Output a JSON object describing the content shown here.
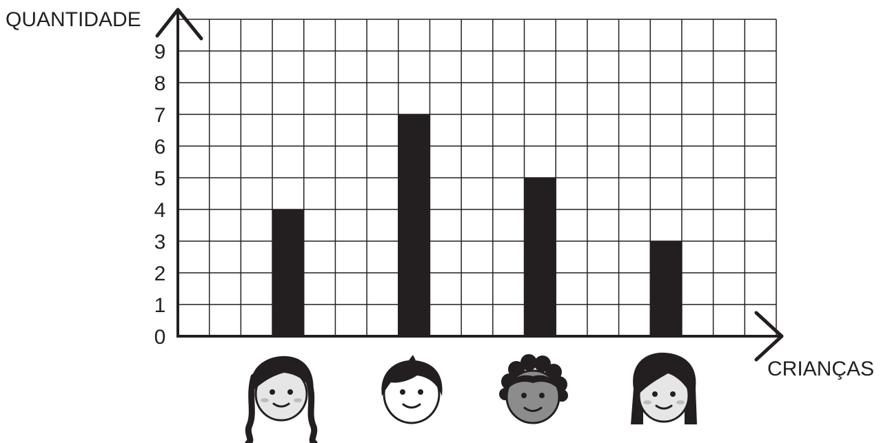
{
  "chart_data": {
    "type": "bar",
    "ylabel": "QUANTIDADE",
    "xlabel": "CRIANÇAS",
    "y_ticks": [
      "0",
      "1",
      "2",
      "3",
      "4",
      "5",
      "6",
      "7",
      "8",
      "9"
    ],
    "ylim": [
      0,
      10
    ],
    "grid": true,
    "categories": [
      "menina-cabelo-ondulado",
      "menino-cabelo-liso",
      "menino-cabelo-cacheado",
      "menina-cabelo-curto"
    ],
    "values": [
      4,
      7,
      5,
      3
    ],
    "category_icons": [
      "girl-wavy-hair-face-icon",
      "boy-straight-hair-face-icon",
      "boy-curly-hair-face-icon",
      "girl-bob-hair-face-icon"
    ],
    "colors": {
      "bar": "#231f20",
      "grid": "#231f20",
      "axis": "#231f20",
      "face_light": "#e6e6e6",
      "face_white": "#ffffff",
      "face_dark": "#8c8c8c"
    }
  }
}
